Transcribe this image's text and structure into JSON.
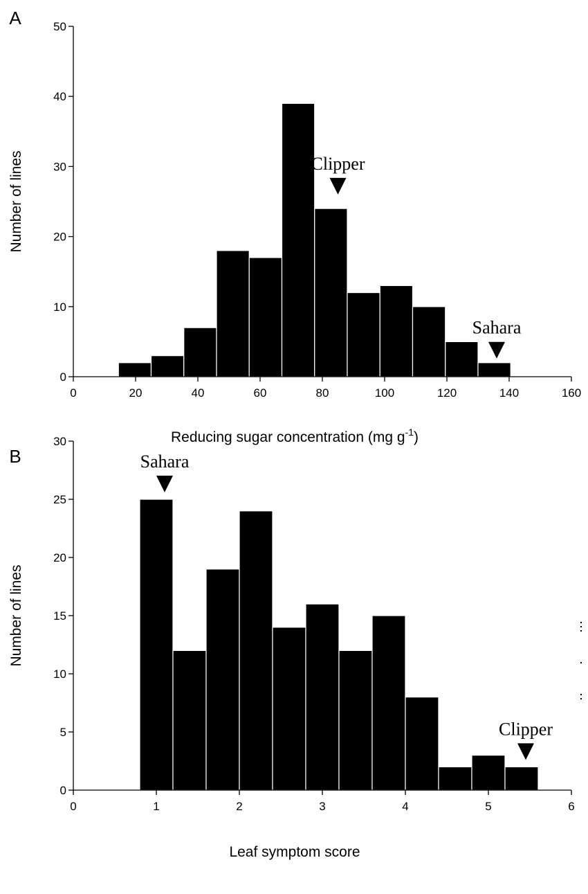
{
  "colors": {
    "bar": "#000000",
    "bar_edge": "#ffffff",
    "axis": "#000000",
    "background": "#ffffff"
  },
  "chart_data": [
    {
      "panel_label": "A",
      "type": "bar",
      "xlabel": "Reducing sugar concentration (mg g",
      "xlabel_sup": "-1",
      "xlabel_close": ")",
      "ylabel": "Number of lines",
      "xlim": [
        0,
        160
      ],
      "ylim": [
        0,
        50
      ],
      "xticks": [
        0,
        20,
        40,
        60,
        80,
        100,
        120,
        140,
        160
      ],
      "yticks": [
        0,
        10,
        20,
        30,
        40,
        50
      ],
      "bin_width": 10.5,
      "bins": [
        {
          "x": 14.5,
          "value": 2
        },
        {
          "x": 25,
          "value": 3
        },
        {
          "x": 35.5,
          "value": 7
        },
        {
          "x": 46,
          "value": 18
        },
        {
          "x": 56.5,
          "value": 17
        },
        {
          "x": 67,
          "value": 39
        },
        {
          "x": 77.5,
          "value": 24
        },
        {
          "x": 88,
          "value": 12
        },
        {
          "x": 98.5,
          "value": 13
        },
        {
          "x": 109,
          "value": 10
        },
        {
          "x": 119.5,
          "value": 5
        },
        {
          "x": 130,
          "value": 2
        }
      ],
      "annotations": [
        {
          "text": "Clipper",
          "x": 85,
          "y": 26
        },
        {
          "text": "Sahara",
          "x": 136,
          "y": 2.6
        }
      ]
    },
    {
      "panel_label": "B",
      "type": "bar",
      "xlabel": "Leaf symptom score",
      "ylabel": "Number of lines",
      "xlim": [
        0,
        6
      ],
      "ylim": [
        0,
        30
      ],
      "xticks": [
        0,
        1,
        2,
        3,
        4,
        5,
        6
      ],
      "yticks": [
        0,
        5,
        10,
        15,
        20,
        25,
        30
      ],
      "bin_width": 0.4,
      "bins": [
        {
          "x": 0.8,
          "value": 25
        },
        {
          "x": 1.2,
          "value": 12
        },
        {
          "x": 1.6,
          "value": 19
        },
        {
          "x": 2.0,
          "value": 24
        },
        {
          "x": 2.4,
          "value": 14
        },
        {
          "x": 2.8,
          "value": 16
        },
        {
          "x": 3.2,
          "value": 12
        },
        {
          "x": 3.6,
          "value": 15
        },
        {
          "x": 4.0,
          "value": 8
        },
        {
          "x": 4.4,
          "value": 2
        },
        {
          "x": 4.8,
          "value": 3
        },
        {
          "x": 5.2,
          "value": 2
        }
      ],
      "annotations": [
        {
          "text": "Sahara",
          "x": 1.1,
          "y": 25.6
        },
        {
          "text": "Clipper",
          "x": 5.45,
          "y": 2.6
        }
      ]
    }
  ]
}
